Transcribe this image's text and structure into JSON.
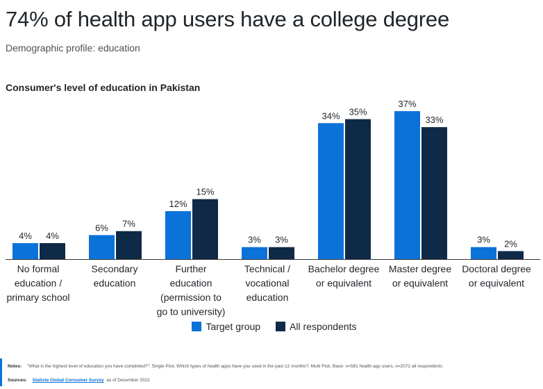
{
  "header": {
    "title": "74% of health app users have a college degree",
    "subtitle": "Demographic profile: education"
  },
  "chart_data": {
    "type": "bar",
    "title": "Consumer's level of education in Pakistan",
    "categories": [
      [
        "No formal",
        "education /",
        "primary school"
      ],
      [
        "Secondary",
        "education"
      ],
      [
        "Further",
        "education",
        "(permission to",
        "go to university)"
      ],
      [
        "Technical /",
        "vocational",
        "education"
      ],
      [
        "Bachelor degree",
        "or equivalent"
      ],
      [
        "Master degree",
        "or equivalent"
      ],
      [
        "Doctoral degree",
        "or equivalent"
      ]
    ],
    "series": [
      {
        "name": "Target group",
        "color": "#0b72d9",
        "values": [
          4,
          6,
          12,
          3,
          34,
          37,
          3
        ],
        "labels": [
          "4%",
          "6%",
          "12%",
          "3%",
          "34%",
          "37%",
          "3%"
        ]
      },
      {
        "name": "All respondents",
        "color": "#0f2a47",
        "values": [
          4,
          7,
          15,
          3,
          35,
          33,
          2
        ],
        "labels": [
          "4%",
          "7%",
          "15%",
          "3%",
          "35%",
          "33%",
          "2%"
        ]
      }
    ],
    "ylim": [
      0,
      40
    ],
    "grid": false,
    "legend": "bottom-center"
  },
  "legend": {
    "items": [
      {
        "label": "Target group",
        "color": "#0b72d9"
      },
      {
        "label": "All respondents",
        "color": "#0f2a47"
      }
    ]
  },
  "footer": {
    "notes_label": "Notes:",
    "notes_text": "\"What is the highest level of education you have completed?\"; Single Pick; Which types of health apps have you used in the past 12 months?; Multi Pick; Base: n=581 health app users, n=2072 all respondents",
    "sources_label": "Sources:",
    "source_name": "Statista Global Consumer Survey",
    "source_suffix": "as of December 2022"
  }
}
